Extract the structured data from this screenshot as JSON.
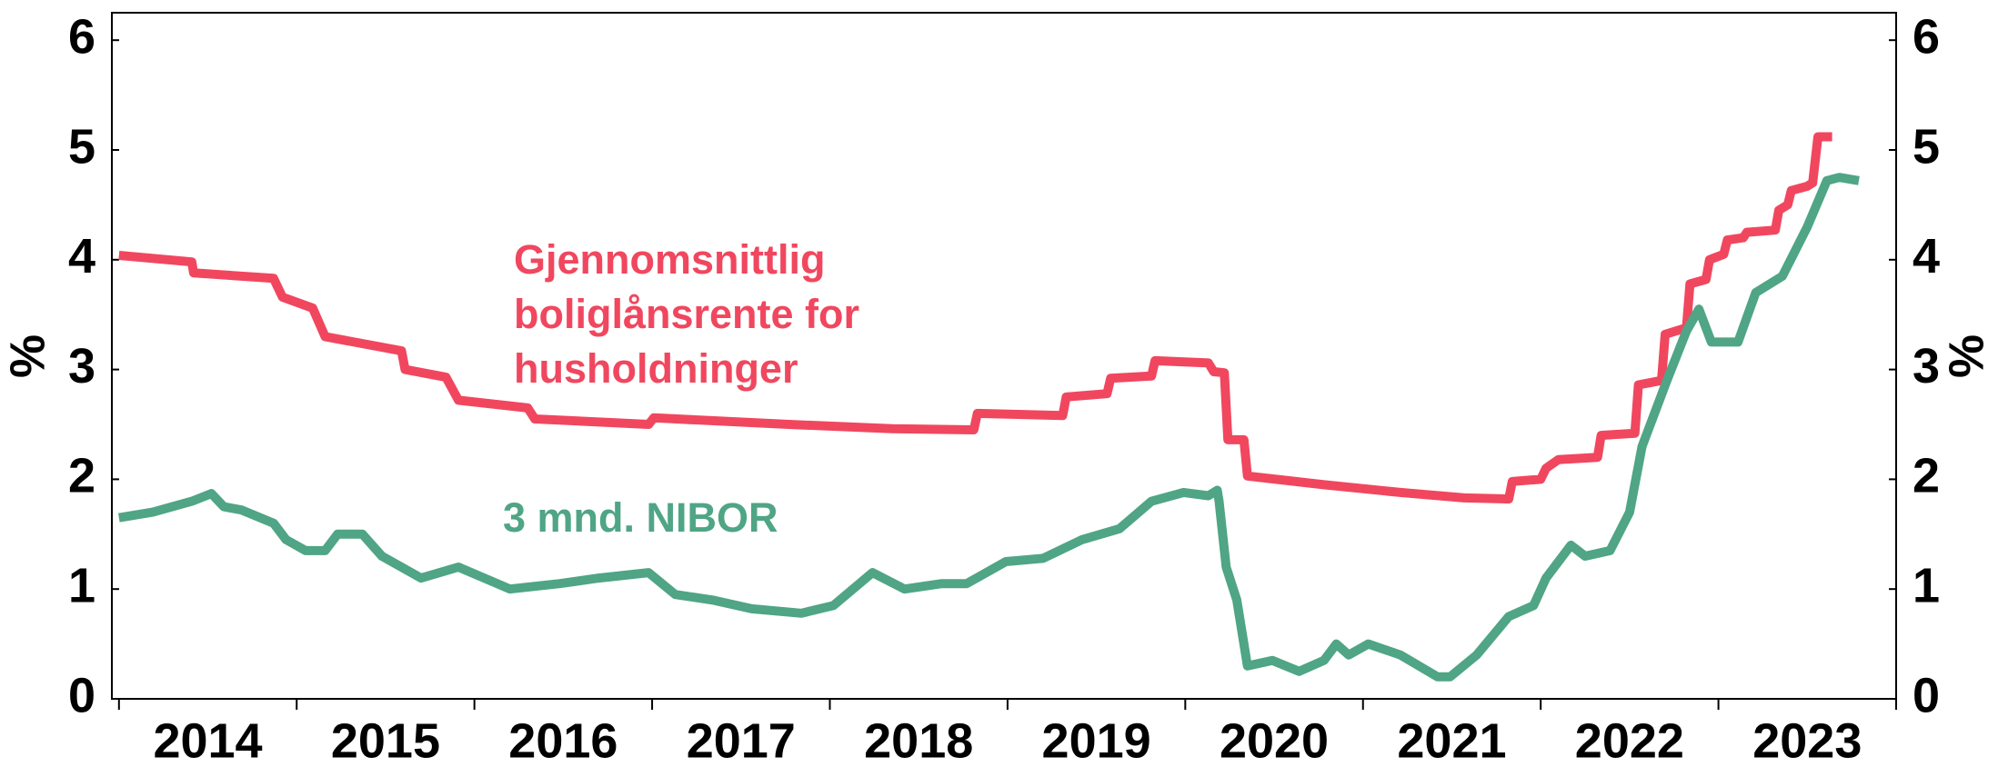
{
  "chart_data": {
    "type": "line",
    "xlim": [
      2013.96,
      2024.0
    ],
    "xticks": [
      {
        "value": 2014.5,
        "label": "2014"
      },
      {
        "value": 2015.5,
        "label": "2015"
      },
      {
        "value": 2016.5,
        "label": "2016"
      },
      {
        "value": 2017.5,
        "label": "2017"
      },
      {
        "value": 2018.5,
        "label": "2018"
      },
      {
        "value": 2019.5,
        "label": "2019"
      },
      {
        "value": 2020.5,
        "label": "2020"
      },
      {
        "value": 2021.5,
        "label": "2021"
      },
      {
        "value": 2022.5,
        "label": "2022"
      },
      {
        "value": 2023.5,
        "label": "2023"
      }
    ],
    "xminor": [
      2014,
      2015,
      2016,
      2017,
      2018,
      2019,
      2020,
      2021,
      2022,
      2023,
      2024
    ],
    "ylim": [
      0,
      6.25
    ],
    "yticks": [
      0,
      1,
      2,
      3,
      4,
      5,
      6
    ],
    "ylabel": "%",
    "y2lim": [
      0,
      6.25
    ],
    "y2ticks": [
      0,
      1,
      2,
      3,
      4,
      5,
      6
    ],
    "y2label": "%",
    "grid": false,
    "series": [
      {
        "name": "Gjennomsnittlig boliglånsrente for husholdninger",
        "color": "#f0475f",
        "x": [
          2014.0,
          2014.41,
          2014.42,
          2014.87,
          2014.92,
          2015.09,
          2015.16,
          2015.59,
          2015.61,
          2015.84,
          2015.91,
          2016.3,
          2016.34,
          2016.98,
          2017.01,
          2017.77,
          2018.35,
          2018.81,
          2018.83,
          2019.31,
          2019.33,
          2019.56,
          2019.58,
          2019.81,
          2019.83,
          2020.13,
          2020.16,
          2020.22,
          2020.24,
          2020.33,
          2020.35,
          2020.78,
          2021.21,
          2021.57,
          2021.82,
          2021.84,
          2022.0,
          2022.03,
          2022.1,
          2022.32,
          2022.34,
          2022.53,
          2022.55,
          2022.68,
          2022.7,
          2022.82,
          2022.84,
          2022.93,
          2022.95,
          2023.03,
          2023.05,
          2023.14,
          2023.16,
          2023.32,
          2023.34,
          2023.39,
          2023.41,
          2023.5,
          2023.53,
          2023.56,
          2023.64
        ],
        "values": [
          4.04,
          3.98,
          3.88,
          3.83,
          3.66,
          3.56,
          3.3,
          3.17,
          3.0,
          2.93,
          2.72,
          2.65,
          2.55,
          2.5,
          2.56,
          2.5,
          2.46,
          2.45,
          2.6,
          2.58,
          2.75,
          2.78,
          2.92,
          2.94,
          3.08,
          3.06,
          2.98,
          2.97,
          2.36,
          2.36,
          2.03,
          1.95,
          1.88,
          1.83,
          1.82,
          1.98,
          2.0,
          2.1,
          2.18,
          2.2,
          2.4,
          2.42,
          2.86,
          2.9,
          3.32,
          3.38,
          3.78,
          3.82,
          4.0,
          4.05,
          4.18,
          4.2,
          4.25,
          4.27,
          4.45,
          4.5,
          4.63,
          4.67,
          4.7,
          5.12,
          5.12
        ]
      },
      {
        "name": "3 mnd. NIBOR",
        "color": "#4fa585",
        "x": [
          2014.0,
          2014.19,
          2014.41,
          2014.52,
          2014.59,
          2014.69,
          2014.87,
          2014.94,
          2015.05,
          2015.16,
          2015.23,
          2015.37,
          2015.48,
          2015.7,
          2015.91,
          2016.2,
          2016.48,
          2016.7,
          2016.98,
          2017.13,
          2017.34,
          2017.56,
          2017.84,
          2018.02,
          2018.24,
          2018.42,
          2018.63,
          2018.77,
          2018.99,
          2019.2,
          2019.42,
          2019.63,
          2019.81,
          2019.99,
          2020.13,
          2020.18,
          2020.19,
          2020.23,
          2020.29,
          2020.35,
          2020.49,
          2020.64,
          2020.78,
          2020.85,
          2020.92,
          2021.03,
          2021.21,
          2021.42,
          2021.49,
          2021.64,
          2021.82,
          2021.96,
          2022.03,
          2022.17,
          2022.25,
          2022.39,
          2022.5,
          2022.57,
          2022.71,
          2022.82,
          2022.89,
          2022.96,
          2023.11,
          2023.21,
          2023.36,
          2023.5,
          2023.61,
          2023.68,
          2023.79
        ],
        "values": [
          1.65,
          1.7,
          1.8,
          1.87,
          1.75,
          1.72,
          1.6,
          1.45,
          1.35,
          1.35,
          1.5,
          1.5,
          1.3,
          1.1,
          1.2,
          1.0,
          1.05,
          1.1,
          1.15,
          0.95,
          0.9,
          0.82,
          0.78,
          0.85,
          1.15,
          1.0,
          1.05,
          1.05,
          1.25,
          1.28,
          1.45,
          1.55,
          1.8,
          1.88,
          1.85,
          1.9,
          1.8,
          1.2,
          0.9,
          0.3,
          0.35,
          0.25,
          0.35,
          0.5,
          0.4,
          0.5,
          0.4,
          0.2,
          0.2,
          0.4,
          0.75,
          0.85,
          1.1,
          1.4,
          1.3,
          1.35,
          1.7,
          2.3,
          2.9,
          3.35,
          3.55,
          3.25,
          3.25,
          3.7,
          3.85,
          4.3,
          4.72,
          4.75,
          4.72
        ]
      }
    ]
  }
}
